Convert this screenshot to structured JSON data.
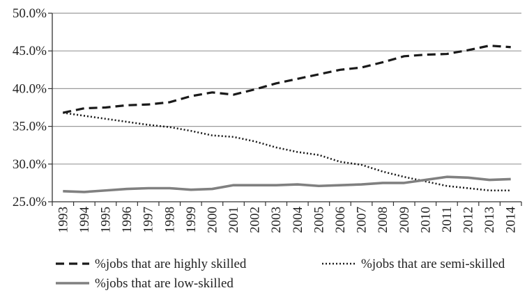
{
  "chart_data": {
    "type": "line",
    "title": "",
    "xlabel": "",
    "ylabel": "",
    "x": [
      1993,
      1994,
      1995,
      1996,
      1997,
      1998,
      1999,
      2000,
      2001,
      2002,
      2003,
      2004,
      2005,
      2006,
      2007,
      2008,
      2009,
      2010,
      2011,
      2012,
      2013,
      2014
    ],
    "x_tick_labels": [
      "1993",
      "1994",
      "1995",
      "1996",
      "1997",
      "1998",
      "1999",
      "2000",
      "2001",
      "2002",
      "2003",
      "2004",
      "2005",
      "2006",
      "2007",
      "2008",
      "2009",
      "2010",
      "2011",
      "2012",
      "2013",
      "2014"
    ],
    "ylim": [
      25.0,
      50.0
    ],
    "y_ticks": [
      25.0,
      30.0,
      35.0,
      40.0,
      45.0,
      50.0
    ],
    "y_tick_labels": [
      "25.0%",
      "30.0%",
      "35.0%",
      "40.0%",
      "45.0%",
      "50.0%"
    ],
    "grid": "horizontal",
    "legend_position": "bottom",
    "series": [
      {
        "name": "%jobs that are highly skilled",
        "style": "dashed",
        "color": "#1a1a1a",
        "values": [
          36.8,
          37.4,
          37.5,
          37.8,
          37.9,
          38.2,
          39.0,
          39.5,
          39.2,
          39.9,
          40.7,
          41.3,
          41.9,
          42.5,
          42.8,
          43.5,
          44.3,
          44.5,
          44.6,
          45.1,
          45.7,
          45.5
        ]
      },
      {
        "name": "%jobs that are semi-skilled",
        "style": "dotted",
        "color": "#1a1a1a",
        "values": [
          36.8,
          36.4,
          36.0,
          35.6,
          35.2,
          34.9,
          34.4,
          33.8,
          33.6,
          33.0,
          32.2,
          31.6,
          31.2,
          30.3,
          29.9,
          29.0,
          28.3,
          27.7,
          27.1,
          26.8,
          26.5,
          26.5
        ]
      },
      {
        "name": "%jobs that are low-skilled",
        "style": "solid",
        "color": "#808080",
        "values": [
          26.4,
          26.3,
          26.5,
          26.7,
          26.8,
          26.8,
          26.6,
          26.7,
          27.2,
          27.2,
          27.2,
          27.3,
          27.1,
          27.2,
          27.3,
          27.5,
          27.5,
          27.9,
          28.3,
          28.2,
          27.9,
          28.0
        ]
      }
    ]
  }
}
